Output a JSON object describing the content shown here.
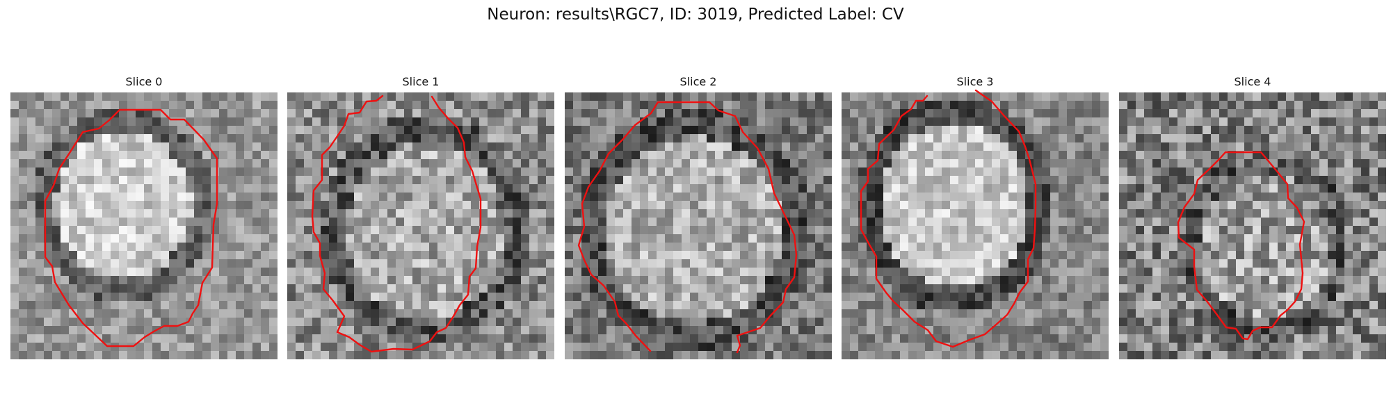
{
  "figure": {
    "title": "Neuron: results\\RGC7, ID: 3019, Predicted Label: CV"
  },
  "contour_color": "#e11111",
  "slices": [
    {
      "title": "Slice 0"
    },
    {
      "title": "Slice 1"
    },
    {
      "title": "Slice 2"
    },
    {
      "title": "Slice 3"
    },
    {
      "title": "Slice 4"
    }
  ]
}
